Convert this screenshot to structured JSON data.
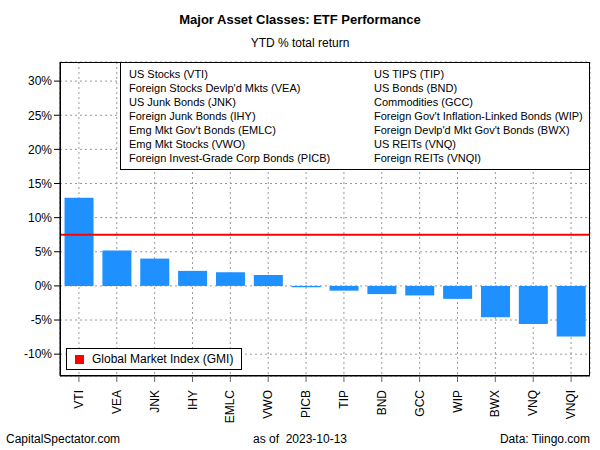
{
  "chart_data": {
    "type": "bar",
    "title": "Major Asset Classes: ETF Performance",
    "subtitle": "YTD % total return",
    "categories": [
      "VTI",
      "VEA",
      "JNK",
      "IHY",
      "EMLC",
      "VWO",
      "PICB",
      "TIP",
      "BND",
      "GCC",
      "WIP",
      "BWX",
      "VNQ",
      "VNQI"
    ],
    "values": [
      12.9,
      5.2,
      4.0,
      2.2,
      2.0,
      1.6,
      -0.2,
      -0.7,
      -1.2,
      -1.4,
      -1.9,
      -4.6,
      -5.6,
      -7.4
    ],
    "color": "#1e90ff",
    "ylim": [
      -13.2,
      32.8
    ],
    "yticks": [
      {
        "value": -10,
        "label": "-10%"
      },
      {
        "value": -5,
        "label": "-5%"
      },
      {
        "value": 0,
        "label": "0%"
      },
      {
        "value": 5,
        "label": "5%"
      },
      {
        "value": 10,
        "label": "10%"
      },
      {
        "value": 15,
        "label": "15%"
      },
      {
        "value": 20,
        "label": "20%"
      },
      {
        "value": 25,
        "label": "25%"
      },
      {
        "value": 30,
        "label": "30%"
      }
    ],
    "grid": true,
    "legend": "bottom-left",
    "reference_line": {
      "name": "Global Market Index (GMI)",
      "value": 7.5,
      "color": "#ff0000"
    },
    "annotations": [
      [
        "US Stocks (VTI)",
        "Foreign Stocks Devlp'd Mkts (VEA)",
        "US Junk Bonds (JNK)",
        "Foreign Junk Bonds (IHY)",
        "Emg Mkt Gov't Bonds (EMLC)",
        "Emg Mkt Stocks (VWO)",
        "Foreign Invest-Grade Corp Bonds (PICB)"
      ],
      [
        "US TIPS (TIP)",
        "US Bonds (BND)",
        "Commodities (GCC)",
        "Foreign Gov't Inflation-Linked Bonds (WIP)",
        "Foreign Devlp'd Mkt Gov't Bonds (BWX)",
        "US REITs (VNQ)",
        "Foreign REITs (VNQI)"
      ]
    ],
    "footer": [
      "CapitalSpectator.com",
      "as of  2023-10-13",
      "Data: Tiingo.com"
    ]
  }
}
